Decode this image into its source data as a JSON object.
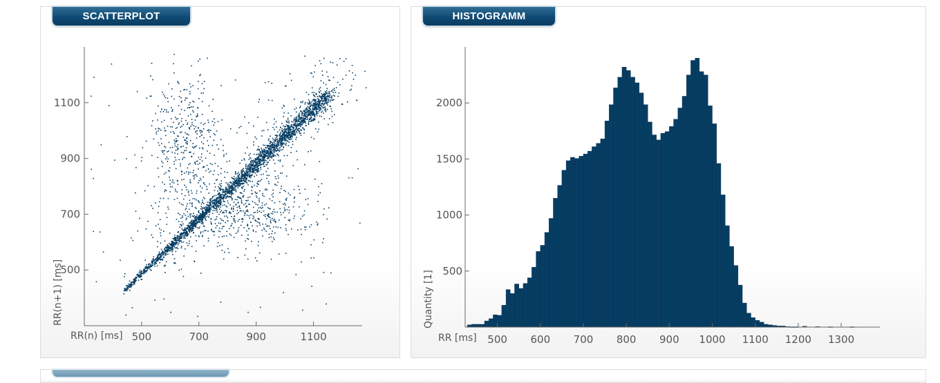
{
  "panels": {
    "scatter": {
      "tab_label": "SCATTERPLOT"
    },
    "histogram": {
      "tab_label": "HISTOGRAMM"
    }
  },
  "colors": {
    "data": "#063d63",
    "axis": "#666666",
    "tab": "#0f4a74"
  },
  "chart_data": [
    {
      "type": "scatter",
      "title": "",
      "xlabel": "RR(n) [ms]",
      "ylabel": "RR(n+1) [ms]",
      "xlim": [
        300,
        1270
      ],
      "ylim": [
        300,
        1300
      ],
      "xticks": [
        "500",
        "700",
        "900",
        "1100"
      ],
      "yticks": [
        "500",
        "700",
        "900",
        "1100"
      ],
      "grid": false,
      "distribution": {
        "main_diagonal": {
          "from": [
            430,
            420
          ],
          "to": [
            1150,
            1130
          ],
          "note": "dense band RR(n+1) ≈ RR(n)"
        },
        "upper_cluster": {
          "center_x": 650,
          "center_y": 950,
          "spread": 120
        },
        "lower_cluster": {
          "center_x": 880,
          "center_y": 710,
          "spread": 110
        },
        "outliers": [
          [
            330,
            830
          ],
          [
            330,
            640
          ],
          [
            1230,
            1150
          ],
          [
            1250,
            1110
          ],
          [
            1100,
            610
          ],
          [
            1130,
            600
          ],
          [
            340,
            460
          ],
          [
            1260,
            670
          ],
          [
            870,
            350
          ],
          [
            600,
            350
          ]
        ]
      }
    },
    {
      "type": "bar",
      "title": "",
      "xlabel": "RR [ms]",
      "ylabel": "Quantity [1]",
      "xlim": [
        425,
        1390
      ],
      "ylim": [
        0,
        2500
      ],
      "xticks": [
        "500",
        "600",
        "700",
        "800",
        "900",
        "1000",
        "1100",
        "1200",
        "1300"
      ],
      "yticks": [
        "500",
        "1000",
        "1500",
        "2000"
      ],
      "grid": false,
      "bin_start": 430,
      "bin_width": 10,
      "values": [
        20,
        25,
        25,
        25,
        55,
        75,
        110,
        105,
        195,
        335,
        300,
        385,
        345,
        390,
        440,
        535,
        675,
        730,
        845,
        970,
        1150,
        1265,
        1400,
        1485,
        1515,
        1505,
        1525,
        1545,
        1570,
        1610,
        1640,
        1680,
        1840,
        1985,
        2135,
        2230,
        2320,
        2290,
        2230,
        2180,
        2090,
        1985,
        1830,
        1715,
        1670,
        1730,
        1745,
        1790,
        1855,
        1955,
        2060,
        2250,
        2380,
        2400,
        2280,
        2250,
        1975,
        1815,
        1460,
        1180,
        905,
        720,
        550,
        375,
        215,
        125,
        85,
        60,
        45,
        25,
        20,
        15,
        10,
        10,
        5,
        3,
        3,
        0,
        8,
        0,
        0,
        5,
        0,
        0,
        3,
        0,
        0,
        0,
        0,
        3,
        0,
        0,
        0,
        0,
        0,
        0
      ]
    }
  ]
}
